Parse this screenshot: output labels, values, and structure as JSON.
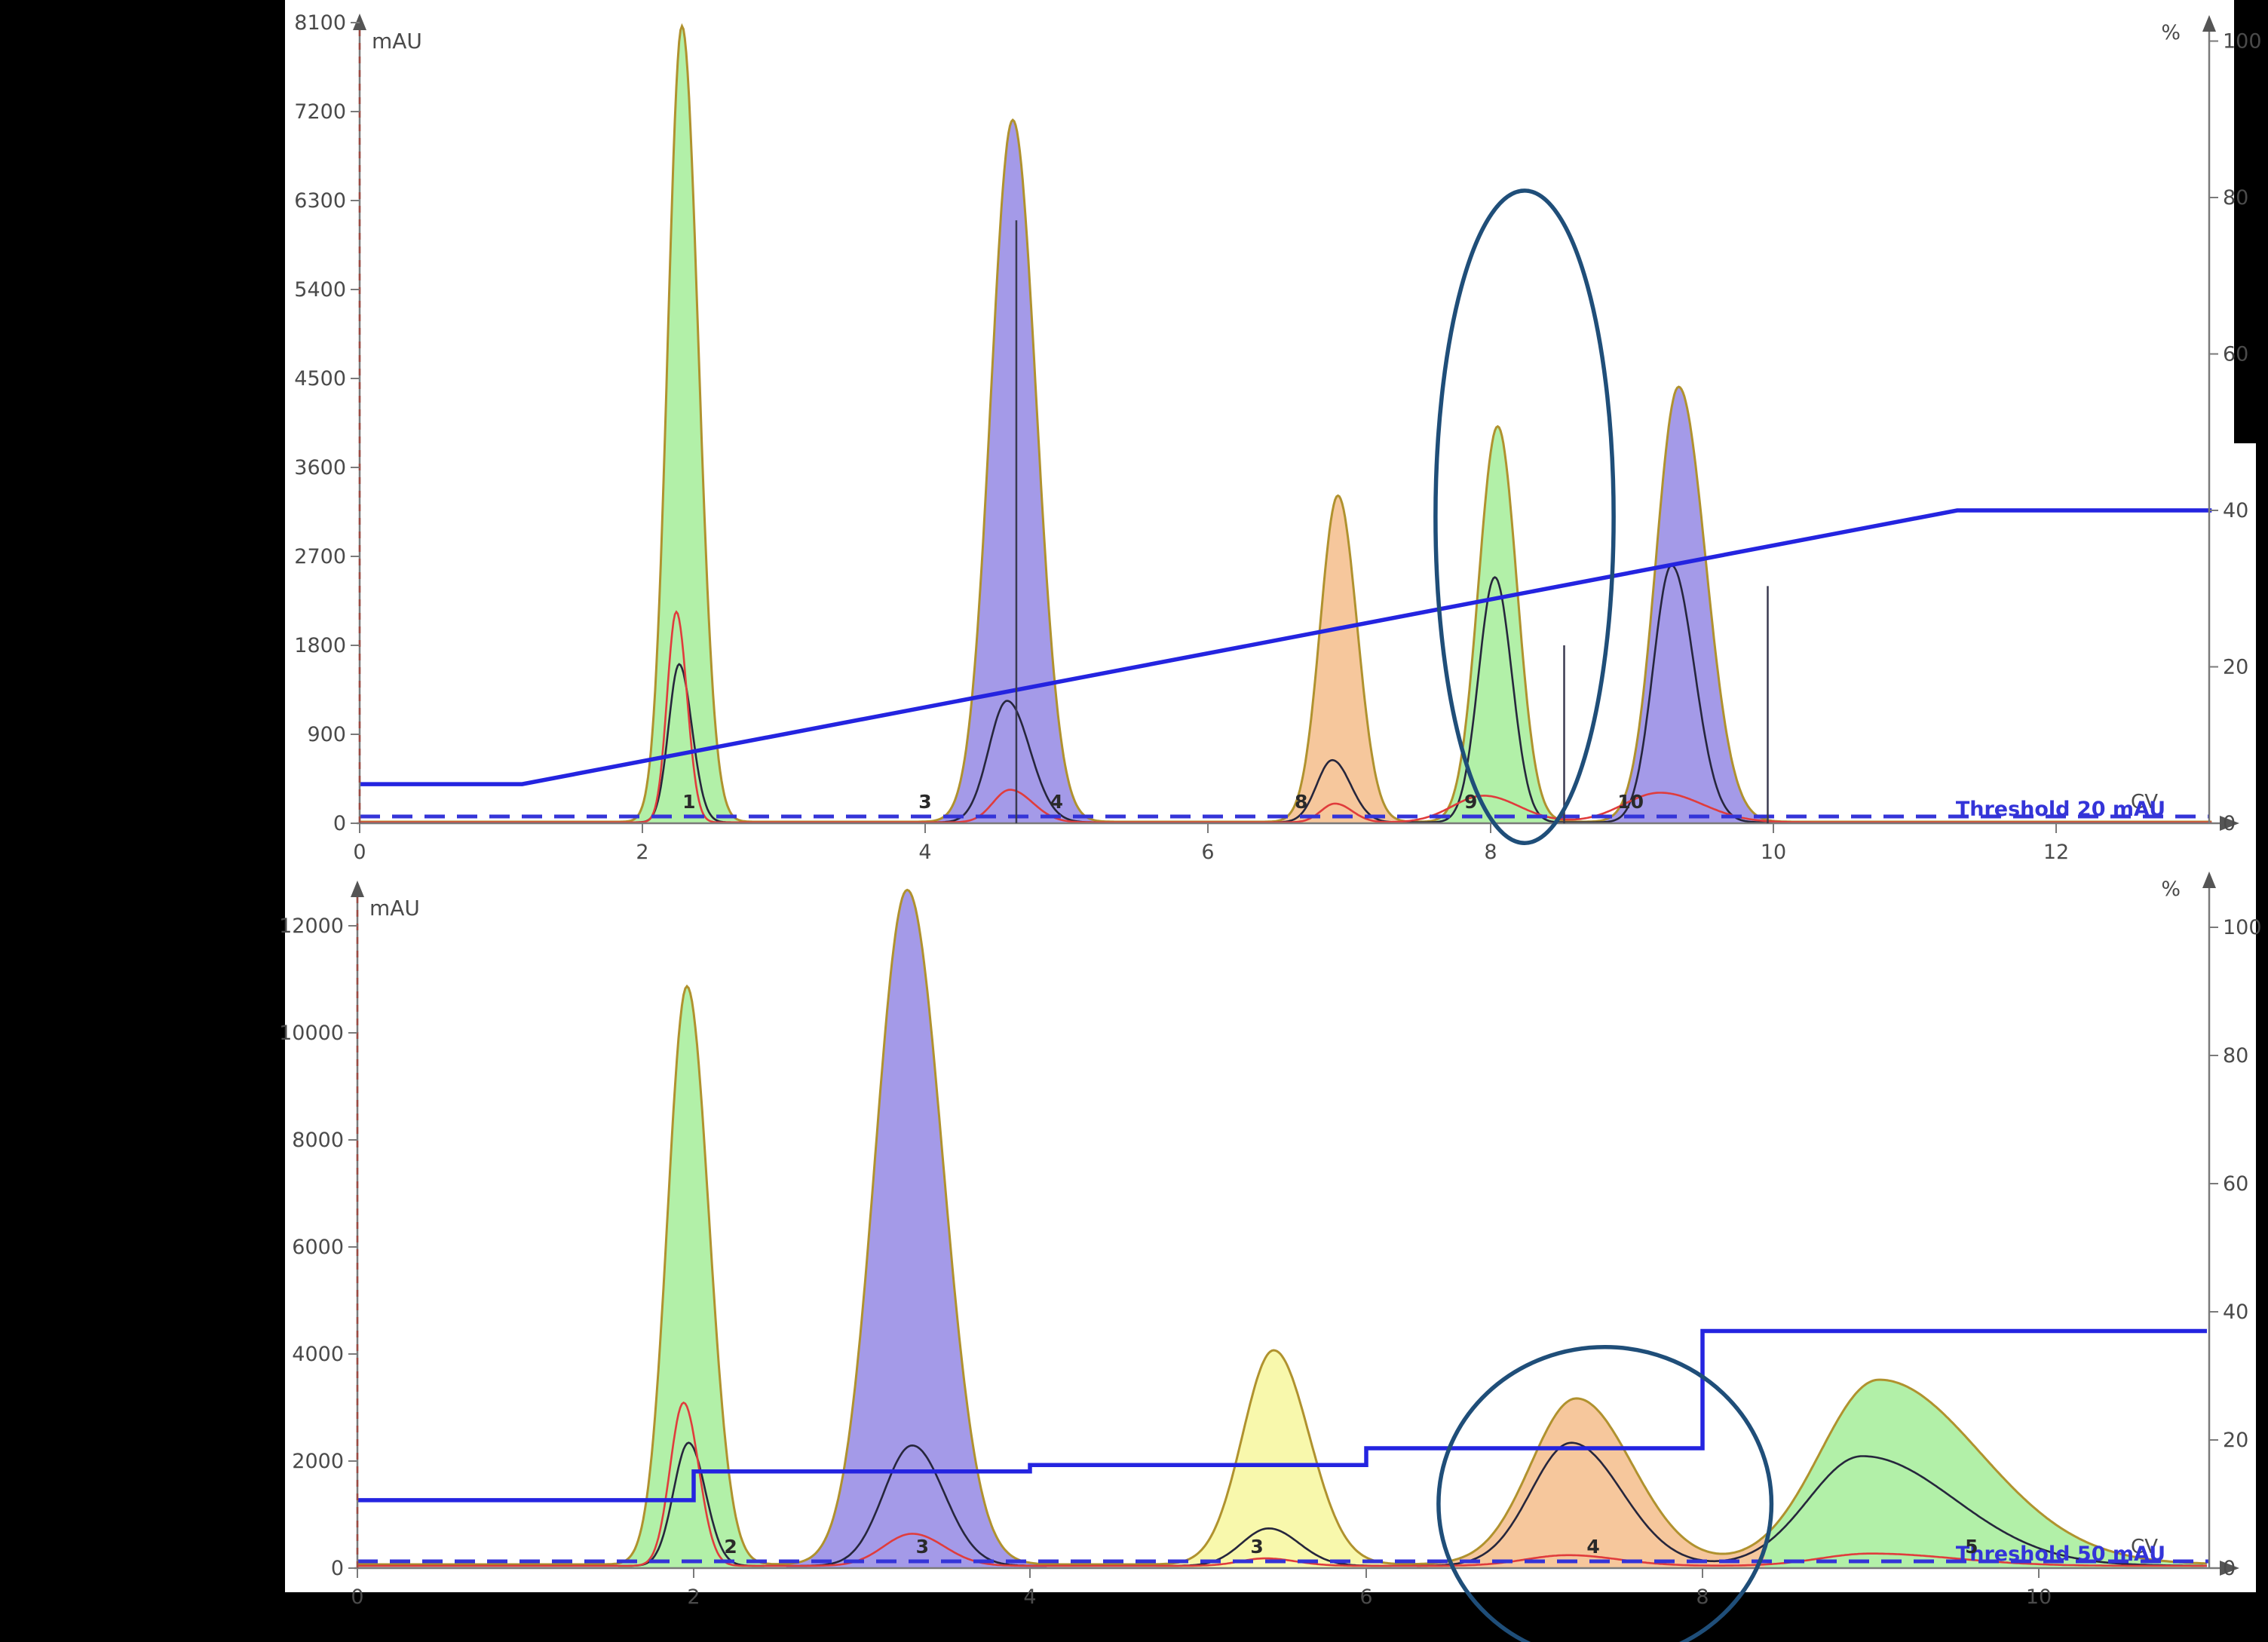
{
  "colors": {
    "background": "#000000",
    "panel": "#ffffff",
    "green_fill": "#b2f0a8",
    "blue_fill": "#a49ae8",
    "orange_fill": "#f6c79c",
    "yellow_fill": "#f8f8ac",
    "envelope_line": "#b0922e",
    "black_curve": "#26263c",
    "red_curve": "#e03c3c",
    "gradient_line": "#2424e0",
    "threshold_line": "#3434d8",
    "axis": "#7a7a7a",
    "axis_dash": "#9b4a42",
    "text": "#4a4a4a",
    "ellipse": "#1f4e79"
  },
  "chart_data": [
    {
      "name": "top-chromatogram",
      "type": "area",
      "y_left": {
        "label": "mAU",
        "min": 0,
        "max": 8100,
        "ticks": [
          0,
          900,
          1800,
          2700,
          3600,
          4500,
          5400,
          6300,
          7200,
          8100
        ]
      },
      "y_right": {
        "label": "%",
        "min": 0,
        "max": 100,
        "ticks": [
          0,
          20,
          40,
          60,
          80,
          100
        ]
      },
      "x": {
        "label": "CV",
        "min": 0,
        "max": 13.1,
        "ticks": [
          0,
          2,
          4,
          6,
          8,
          10,
          12
        ]
      },
      "threshold": {
        "label": "Threshold 20 mAU",
        "mau": 20
      },
      "baseline_mau": 15,
      "gradient_pct": [
        [
          0,
          5
        ],
        [
          1.15,
          5
        ],
        [
          11.3,
          40
        ],
        [
          13.1,
          40
        ]
      ],
      "peaks": [
        {
          "name": "green-peak-1",
          "color": "green_fill",
          "cv": 2.28,
          "mau": 8050,
          "sl": 0.1,
          "sr": 0.115,
          "clip": [
            1.78,
            2.8
          ]
        },
        {
          "name": "blue-peak-1",
          "color": "blue_fill",
          "cv": 4.62,
          "mau": 7100,
          "sl": 0.155,
          "sr": 0.165,
          "clip": [
            3.98,
            5.3
          ]
        },
        {
          "name": "orange-peak",
          "color": "orange_fill",
          "cv": 6.92,
          "mau": 3300,
          "sl": 0.125,
          "sr": 0.135,
          "clip": [
            6.2,
            7.6
          ]
        },
        {
          "name": "green-peak-2",
          "color": "green_fill",
          "cv": 8.05,
          "mau": 4000,
          "sl": 0.135,
          "sr": 0.135,
          "clip": [
            7.6,
            8.52
          ]
        },
        {
          "name": "blue-peak-2",
          "color": "blue_fill",
          "cv": 9.33,
          "mau": 4400,
          "sl": 0.16,
          "sr": 0.19,
          "clip": [
            8.52,
            9.96
          ]
        }
      ],
      "uv_black": [
        {
          "cv": 2.26,
          "mau": 1600,
          "sl": 0.075,
          "sr": 0.09
        },
        {
          "cv": 4.58,
          "mau": 1230,
          "sl": 0.13,
          "sr": 0.16
        },
        {
          "cv": 6.88,
          "mau": 630,
          "sl": 0.11,
          "sr": 0.13
        },
        {
          "cv": 8.03,
          "mau": 2480,
          "sl": 0.115,
          "sr": 0.12
        },
        {
          "cv": 9.28,
          "mau": 2600,
          "sl": 0.13,
          "sr": 0.16
        }
      ],
      "uv_red": [
        {
          "cv": 2.24,
          "mau": 2130,
          "sl": 0.065,
          "sr": 0.075
        },
        {
          "cv": 4.6,
          "mau": 330,
          "sl": 0.12,
          "sr": 0.16
        },
        {
          "cv": 6.9,
          "mau": 190,
          "sl": 0.1,
          "sr": 0.12
        },
        {
          "cv": 7.95,
          "mau": 270,
          "sl": 0.22,
          "sr": 0.25
        },
        {
          "cv": 9.2,
          "mau": 300,
          "sl": 0.26,
          "sr": 0.3
        }
      ],
      "peak_labels": [
        {
          "text": "1",
          "cv": 2.33
        },
        {
          "text": "3",
          "cv": 4.0
        },
        {
          "text": "4",
          "cv": 4.93
        },
        {
          "text": "8",
          "cv": 6.66
        },
        {
          "text": "9",
          "cv": 7.86
        },
        {
          "text": "10",
          "cv": 8.99
        }
      ],
      "markers": [
        {
          "cv": 4.645,
          "mau": 6100
        },
        {
          "cv": 8.52,
          "mau": 1800
        },
        {
          "cv": 9.96,
          "mau": 2400
        }
      ],
      "ellipse": {
        "cv": 8.24,
        "mau": 3100,
        "rx_cv": 0.63,
        "ry_mau": 3300
      }
    },
    {
      "name": "bottom-chromatogram",
      "type": "area",
      "y_left": {
        "label": "mAU",
        "min": 0,
        "max": 13400,
        "ticks": [
          0,
          2000,
          4000,
          6000,
          8000,
          10000,
          12000
        ]
      },
      "y_right": {
        "label": "%",
        "min": 0,
        "max": 100,
        "ticks": [
          0,
          20,
          40,
          60,
          80,
          100
        ]
      },
      "x": {
        "label": "CV",
        "min": 0,
        "max": 11.0,
        "ticks": [
          0,
          2,
          4,
          6,
          8,
          10
        ]
      },
      "threshold": {
        "label": "Threshold 50 mAU",
        "mau": 50
      },
      "baseline_mau": 70,
      "gradient_pct": [
        [
          0,
          10.6
        ],
        [
          2.0,
          10.6
        ],
        [
          2.0,
          15.1
        ],
        [
          4.0,
          15.1
        ],
        [
          4.0,
          16.1
        ],
        [
          6.0,
          16.1
        ],
        [
          6.0,
          18.7
        ],
        [
          8.0,
          18.7
        ],
        [
          8.0,
          37
        ],
        [
          11.0,
          37
        ]
      ],
      "peaks": [
        {
          "name": "green-peak-1",
          "color": "green_fill",
          "cv": 1.96,
          "mau": 10800,
          "sl": 0.115,
          "sr": 0.13,
          "clip": [
            1.55,
            2.42
          ]
        },
        {
          "name": "blue-peak",
          "color": "blue_fill",
          "cv": 3.27,
          "mau": 12600,
          "sl": 0.19,
          "sr": 0.21,
          "clip": [
            2.55,
            4.1
          ]
        },
        {
          "name": "yellow-peak",
          "color": "yellow_fill",
          "cv": 5.45,
          "mau": 4000,
          "sl": 0.185,
          "sr": 0.21,
          "clip": [
            4.75,
            6.15
          ]
        },
        {
          "name": "orange-peak",
          "color": "orange_fill",
          "cv": 7.25,
          "mau": 3100,
          "sl": 0.27,
          "sr": 0.33,
          "clip": [
            6.3,
            8.37
          ]
        },
        {
          "name": "green-peak-2",
          "color": "green_fill",
          "cv": 9.05,
          "mau": 3450,
          "sl": 0.35,
          "sr": 0.6,
          "clip": [
            8.37,
            10.98
          ]
        }
      ],
      "uv_black": [
        {
          "cv": 1.97,
          "mau": 2300,
          "sl": 0.09,
          "sr": 0.1
        },
        {
          "cv": 3.3,
          "mau": 2250,
          "sl": 0.17,
          "sr": 0.19
        },
        {
          "cv": 5.42,
          "mau": 700,
          "sl": 0.16,
          "sr": 0.18
        },
        {
          "cv": 7.22,
          "mau": 2300,
          "sl": 0.24,
          "sr": 0.3
        },
        {
          "cv": 8.95,
          "mau": 2050,
          "sl": 0.32,
          "sr": 0.55
        }
      ],
      "uv_red": [
        {
          "cv": 1.94,
          "mau": 3050,
          "sl": 0.08,
          "sr": 0.09
        },
        {
          "cv": 3.3,
          "mau": 600,
          "sl": 0.17,
          "sr": 0.19
        },
        {
          "cv": 5.4,
          "mau": 140,
          "sl": 0.15,
          "sr": 0.18
        },
        {
          "cv": 7.2,
          "mau": 200,
          "sl": 0.25,
          "sr": 0.3
        },
        {
          "cv": 9.0,
          "mau": 230,
          "sl": 0.3,
          "sr": 0.5
        }
      ],
      "peak_labels": [
        {
          "text": "2",
          "cv": 2.22
        },
        {
          "text": "3",
          "cv": 3.36
        },
        {
          "text": "3",
          "cv": 5.35
        },
        {
          "text": "4",
          "cv": 7.35
        },
        {
          "text": "5",
          "cv": 9.6
        }
      ],
      "markers": [],
      "ellipse": {
        "cv": 7.42,
        "mau": 1200,
        "rx_cv": 0.99,
        "ry_mau": 2930
      }
    }
  ]
}
